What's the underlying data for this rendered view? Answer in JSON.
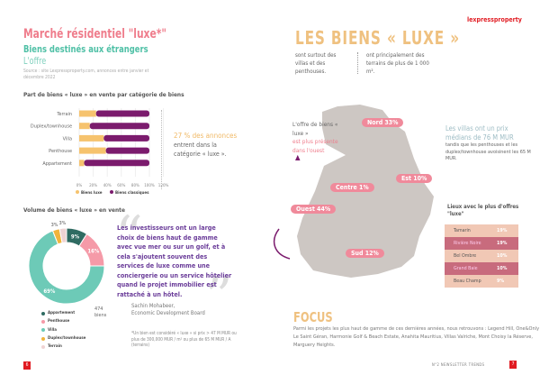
{
  "left": {
    "title": "Marché résidentiel \"luxe*\"",
    "subtitle": "Biens destinés aux étrangers",
    "section": "L'offre",
    "source": "Source : site Lexpressproperty.com, annonces entre janvier et décembre 2022",
    "bar_title": "Part de biens « luxe » en vente par catégorie de biens",
    "callout_highlight": "27 % des annonces",
    "callout_rest": "entrent dans la catégorie « luxe ».",
    "donut_title": "Volume de biens « luxe » en vente",
    "donut_total": "474 biens",
    "quote": "Les investisseurs ont un large choix de biens haut de gamme avec vue mer ou sur un golf, et à cela s'ajoutent souvent des services de luxe comme une conciergerie ou un service hôtelier quand le projet immobilier est rattaché à un hôtel.",
    "author_name": "Sachin Mohabeer,",
    "author_org": "Economic Development Board",
    "footnote": "*Un bien est considéré « luxe » si prix > 47 M MUR ou plus de 300,000 MUR / m² ou plus de 65 M MUR / A (terrains)",
    "page_number": "6"
  },
  "chart_data": [
    {
      "type": "bar",
      "orientation": "horizontal",
      "stacked": true,
      "categories": [
        "Terrain",
        "Duplex/townhouse",
        "Villa",
        "Penthouse",
        "Appartement"
      ],
      "series": [
        {
          "name": "Biens luxe",
          "values": [
            24,
            15,
            35,
            38,
            7
          ],
          "color": "#f6c36e"
        },
        {
          "name": "Biens classiques",
          "values": [
            76,
            85,
            65,
            62,
            93
          ],
          "color": "#7b1b6d"
        }
      ],
      "xlim": [
        0,
        120
      ],
      "xticks": [
        "0%",
        "20%",
        "40%",
        "60%",
        "80%",
        "100%",
        "120%"
      ],
      "legend": "bottom"
    },
    {
      "type": "pie",
      "donut": true,
      "categories": [
        "Appartement",
        "Penthouse",
        "Villa",
        "Duplex/townhouse",
        "Terrain"
      ],
      "values": [
        9,
        16,
        69,
        3,
        3
      ],
      "labels": [
        "9%",
        "16%",
        "69%",
        "3%",
        "3%"
      ],
      "colors": [
        "#2f6b62",
        "#f59aa8",
        "#6dcab7",
        "#f0b43c",
        "#efd3d3"
      ],
      "legend": "bottom"
    }
  ],
  "right": {
    "logo": "lexpressproperty",
    "headline": "LES BIENS « LUXE »",
    "col1": "sont surtout des villas et des penthouses.",
    "col2": "ont principalement des terrains de plus de 1 000 m².",
    "map_note_1": "L'offre de biens « luxe »",
    "map_note_2": "est plus présente dans l'ouest",
    "regions": [
      {
        "name": "Nord 33%"
      },
      {
        "name": "Est 10%"
      },
      {
        "name": "Centre 1%"
      },
      {
        "name": "Ouest 44%"
      },
      {
        "name": "Sud 12%"
      }
    ],
    "villa_highlight": "Les villas ont un prix médians de 76 M MUR",
    "villa_rest": "tandis que les penthouses et les duplex/townhouse avoisinent les 65 M MUR.",
    "places_title": "Lieux avec le plus d'offres \"luxe\"",
    "places": [
      {
        "name": "Tamarin",
        "value": "19%"
      },
      {
        "name": "Rivière Noire",
        "value": "19%"
      },
      {
        "name": "Bel Ombre",
        "value": "10%"
      },
      {
        "name": "Grand Baie",
        "value": "10%"
      },
      {
        "name": "Beau Champ",
        "value": "9%"
      }
    ],
    "focus_title": "FOCUS",
    "focus_text": "Parmi les projets les plus haut de gamme de ces dernières années, nous retrouvons : Legend Hill, One&Only Le Saint Géran, Harmonie Golf & Beach Estate, Anahita Mauritius, Villas Valriche, Mont Choisy la Réserve, Marguery Heights.",
    "footer": "N°2 NEWSLETTER TRENDS",
    "page_number": "7"
  }
}
